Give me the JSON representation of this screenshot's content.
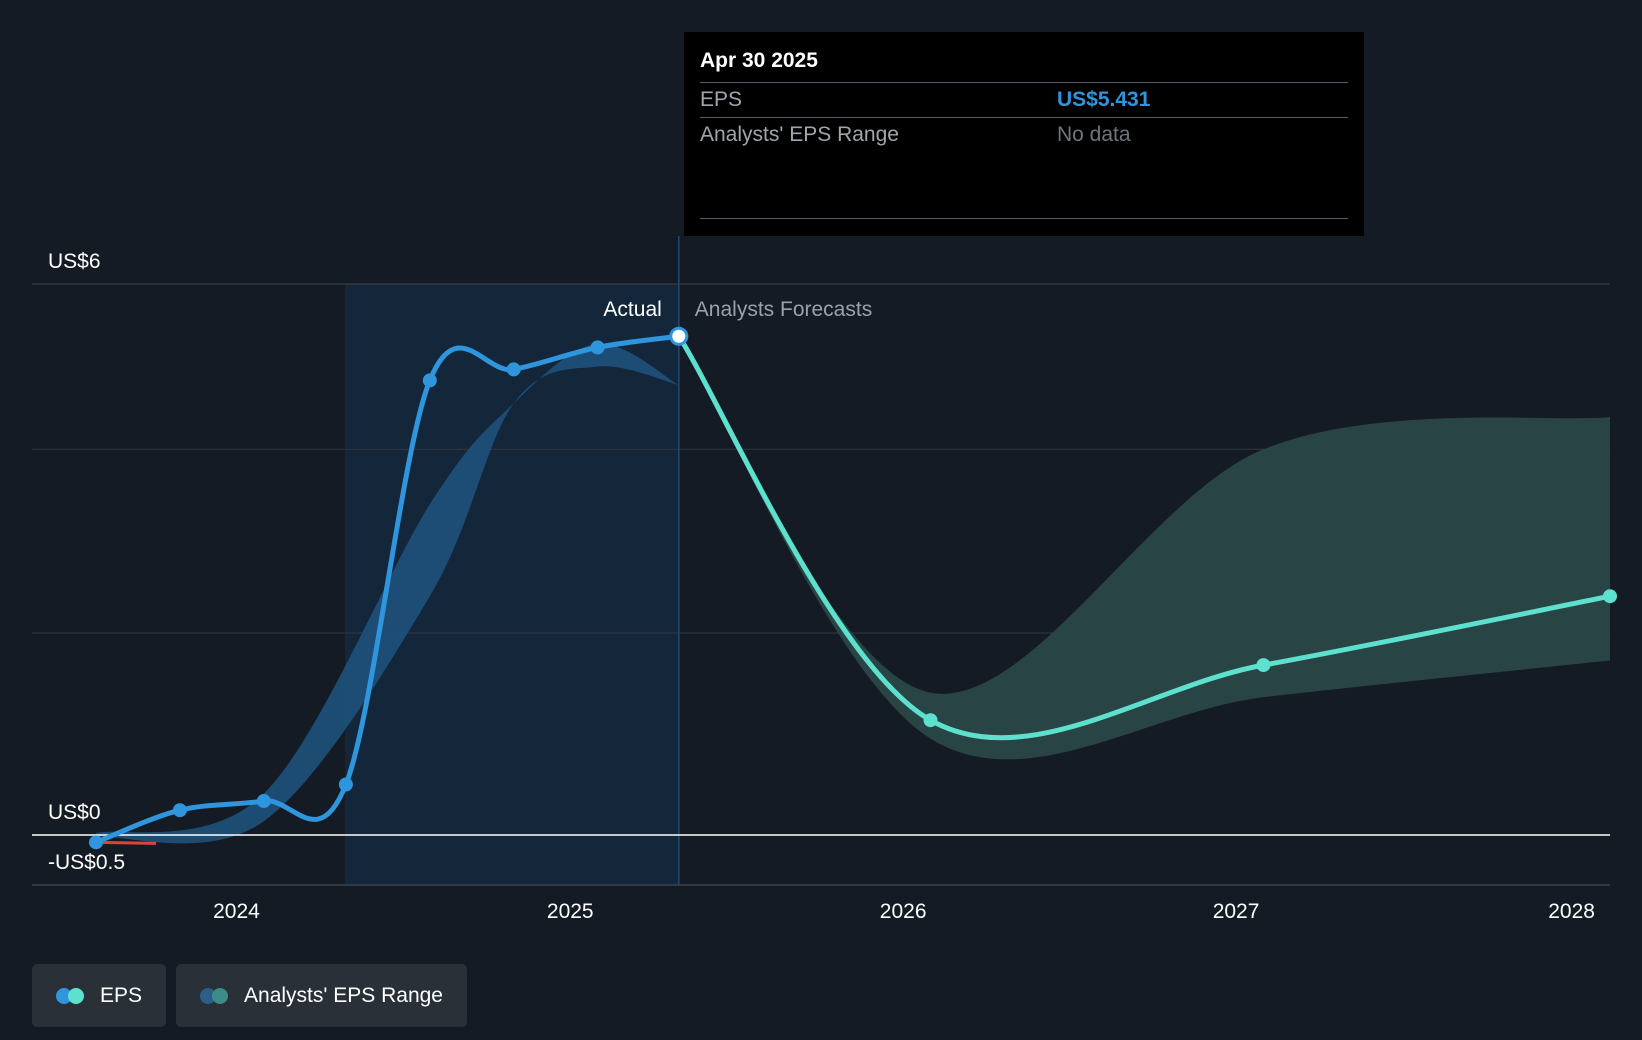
{
  "chart_data": {
    "type": "line",
    "y_axis": {
      "ticks": [
        {
          "value": 6,
          "label": "US$6"
        },
        {
          "value": 0,
          "label": "US$0"
        },
        {
          "value": -0.5,
          "label": "-US$0.5"
        }
      ],
      "range": [
        -0.5,
        6
      ],
      "gridlines": [
        2.2,
        4.2
      ]
    },
    "x_axis": {
      "range": [
        "2023-07-31",
        "2028-02-15"
      ],
      "ticks": [
        {
          "date": "2024-01-01",
          "label": "2024"
        },
        {
          "date": "2025-01-01",
          "label": "2025"
        },
        {
          "date": "2026-01-01",
          "label": "2026"
        },
        {
          "date": "2027-01-01",
          "label": "2027"
        },
        {
          "date": "2028-01-01",
          "label": "2028"
        }
      ]
    },
    "regions": {
      "actual_label": "Actual",
      "forecast_label": "Analysts Forecasts",
      "highlight_start": "2024-04-30",
      "divider": "2025-04-30"
    },
    "series": [
      {
        "name": "EPS",
        "kind": "actual",
        "color": "#2f95dc",
        "points": [
          {
            "x": "2023-07-31",
            "y": -0.08
          },
          {
            "x": "2023-10-31",
            "y": 0.27
          },
          {
            "x": "2024-01-31",
            "y": 0.37
          },
          {
            "x": "2024-04-30",
            "y": 0.55
          },
          {
            "x": "2024-07-31",
            "y": 4.95
          },
          {
            "x": "2024-10-31",
            "y": 5.07
          },
          {
            "x": "2025-01-31",
            "y": 5.31
          },
          {
            "x": "2025-04-30",
            "y": 5.431
          }
        ]
      },
      {
        "name": "EPS",
        "kind": "forecast",
        "color": "#5ee0cf",
        "points": [
          {
            "x": "2025-04-30",
            "y": 5.431
          },
          {
            "x": "2026-01-31",
            "y": 1.25
          },
          {
            "x": "2027-01-31",
            "y": 1.85
          },
          {
            "x": "2028-02-15",
            "y": 2.6
          }
        ]
      }
    ],
    "range_band": {
      "name": "Analysts' EPS Range",
      "past": [
        {
          "x": "2023-07-31",
          "low": -0.02,
          "high": 0.02
        },
        {
          "x": "2024-01-31",
          "low": 0.15,
          "high": 0.45
        },
        {
          "x": "2024-07-31",
          "low": 2.6,
          "high": 3.6
        },
        {
          "x": "2024-10-31",
          "low": 4.7,
          "high": 4.7
        },
        {
          "x": "2025-01-31",
          "low": 5.1,
          "high": 5.35
        },
        {
          "x": "2025-04-30",
          "low": 4.9,
          "high": 4.9
        }
      ],
      "forecast": [
        {
          "x": "2025-04-30",
          "low": 5.431,
          "high": 5.431
        },
        {
          "x": "2026-01-31",
          "low": 1.05,
          "high": 1.55
        },
        {
          "x": "2027-01-31",
          "low": 1.5,
          "high": 4.2
        },
        {
          "x": "2028-02-15",
          "low": 1.9,
          "high": 4.55
        }
      ]
    },
    "hover_point": {
      "x": "2025-04-30",
      "y": 5.431
    }
  },
  "tooltip": {
    "date": "Apr 30 2025",
    "rows": [
      {
        "label": "EPS",
        "value": "US$5.431"
      },
      {
        "label": "Analysts' EPS Range",
        "value": "No data"
      }
    ]
  },
  "legend": {
    "items": [
      {
        "label": "EPS",
        "color_a": "#2f95dc",
        "color_b": "#5ee0cf"
      },
      {
        "label": "Analysts' EPS Range",
        "color_a": "#2a5f8a",
        "color_b": "#3e8c87"
      }
    ]
  },
  "colors": {
    "background": "#151b24",
    "actual_line": "#2f95dc",
    "forecast_line": "#5ee0cf",
    "past_band": "#1e4f78",
    "forecast_band": "#2a4748",
    "highlight": "#13263a",
    "grid": "#2f3842",
    "zero_line": "#ffffff",
    "end_point": "#e0413c"
  }
}
